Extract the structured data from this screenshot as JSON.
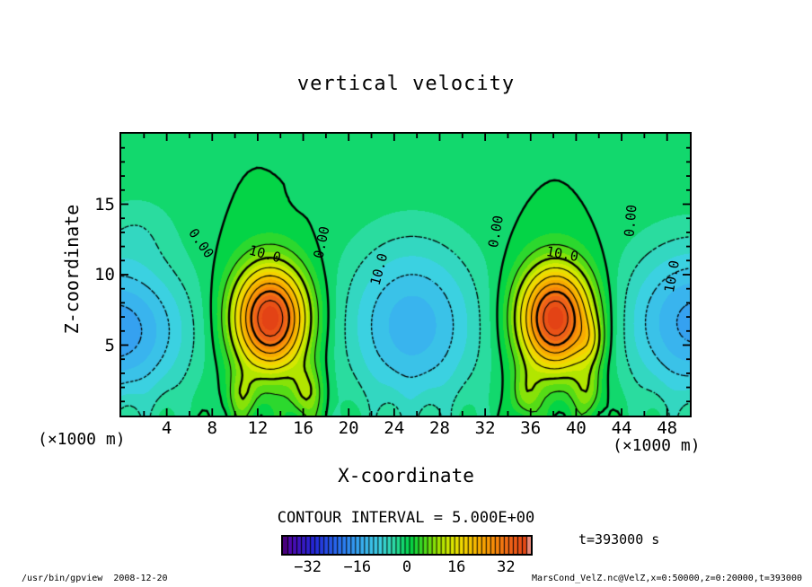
{
  "title": "vertical velocity",
  "annotations": {
    "contour_interval_text": "CONTOUR INTERVAL = 5.000E+00",
    "time_text": "t=393000 s",
    "unit_left": "(×1000 m)",
    "unit_right": "(×1000 m)"
  },
  "footer": {
    "left": "/usr/bin/gpview  2008-12-20",
    "right": "MarsCond_VelZ.nc@VelZ,x=0:50000,z=0:20000,t=393000"
  },
  "chart_data": {
    "type": "heatmap",
    "title": "vertical velocity",
    "xlabel": "X-coordinate",
    "ylabel": "Z-coordinate",
    "x_unit": "(×1000 m)",
    "y_unit": "(×1000 m)",
    "xlim": [
      0,
      50
    ],
    "ylim": [
      0,
      20
    ],
    "x_tick_labels": [
      4,
      8,
      12,
      16,
      20,
      24,
      28,
      32,
      36,
      40,
      44,
      48
    ],
    "x_minor_step": 2,
    "y_tick_labels": [
      5,
      10,
      15
    ],
    "y_minor_step": 1,
    "grid": false,
    "contour_interval": 5.0,
    "levels_solid_thin": [
      5,
      15,
      20,
      25,
      35
    ],
    "levels_solid_thick": [
      0,
      10,
      30
    ],
    "levels_dashed": [
      -15,
      -10,
      -5
    ],
    "quantize_step": 2.5,
    "colormap_stops": [
      [
        -45,
        "#48007c"
      ],
      [
        -40,
        "#5a00a0"
      ],
      [
        -30,
        "#2428d8"
      ],
      [
        -22,
        "#2870f0"
      ],
      [
        -15,
        "#38acf0"
      ],
      [
        -9,
        "#3cd0e4"
      ],
      [
        -4,
        "#2cdca4"
      ],
      [
        -1,
        "#10d868"
      ],
      [
        1,
        "#00d448"
      ],
      [
        6,
        "#50dc18"
      ],
      [
        10,
        "#a0e400"
      ],
      [
        14,
        "#d8e800"
      ],
      [
        18,
        "#f4d800"
      ],
      [
        23,
        "#f8b000"
      ],
      [
        28,
        "#f88c08"
      ],
      [
        33,
        "#f06418"
      ],
      [
        40,
        "#e03c14"
      ],
      [
        45,
        "#e88878"
      ]
    ],
    "field": {
      "updrafts": [
        {
          "xc": 13.1,
          "amp": 40,
          "zc": 6.9,
          "zs": 2.6,
          "xs": 2.3
        },
        {
          "xc": 38.2,
          "amp": 40,
          "zc": 6.9,
          "zs": 2.6,
          "xs": 2.3
        },
        {
          "xc": 16.3,
          "amp": 10,
          "zc": 1.6,
          "zs": 1.4,
          "xs": 1.0
        },
        {
          "xc": 10.6,
          "amp": 8,
          "zc": 1.4,
          "zs": 1.2,
          "xs": 0.9
        },
        {
          "xc": 35.6,
          "amp": 8,
          "zc": 1.5,
          "zs": 1.3,
          "xs": 0.9
        },
        {
          "xc": 41.3,
          "amp": 7,
          "zc": 5.2,
          "zs": 1.2,
          "xs": 0.8
        },
        {
          "xc": 41.0,
          "amp": 8,
          "zc": 1.7,
          "zs": 1.3,
          "xs": 0.9
        },
        {
          "xc": 16.2,
          "amp": -1.6,
          "zc": 15.6,
          "zs": 0.55,
          "xs": 0.6
        }
      ],
      "downdrafts": [
        {
          "xc": -0.5,
          "amp": 17,
          "zc": 6.0,
          "zs": 3.7,
          "xs": 4.6
        },
        {
          "xc": 25.6,
          "amp": 14,
          "zc": 6.4,
          "zs": 4.4,
          "xs": 4.4
        },
        {
          "xc": 50.5,
          "amp": 16,
          "zc": 6.6,
          "zs": 4.0,
          "xs": 4.6
        },
        {
          "xc": 1.5,
          "amp": 3,
          "zc": 13.5,
          "zs": 1.8,
          "xs": 2.5
        }
      ],
      "ripple": {
        "amp": 1.8,
        "freq": 1.9,
        "phase": 0.5,
        "decay": 1.1
      }
    },
    "contour_labels": [
      {
        "text": "0.00",
        "x": 224,
        "y": 271,
        "rot": 55
      },
      {
        "text": "0.00",
        "x": 358,
        "y": 270,
        "rot": -78
      },
      {
        "text": "0.00",
        "x": 552,
        "y": 258,
        "rot": -80
      },
      {
        "text": "0.00",
        "x": 702,
        "y": 246,
        "rot": -85
      },
      {
        "text": "10.0",
        "x": 295,
        "y": 283,
        "rot": 15
      },
      {
        "text": "10.0",
        "x": 422,
        "y": 300,
        "rot": -75
      },
      {
        "text": "10.0",
        "x": 626,
        "y": 283,
        "rot": 10
      },
      {
        "text": "10.0",
        "x": 748,
        "y": 308,
        "rot": -80
      }
    ],
    "colorbar": {
      "label_range": [
        -40,
        40
      ],
      "ticks": [
        -32,
        -16,
        0,
        16,
        32
      ],
      "cells": 55
    }
  }
}
